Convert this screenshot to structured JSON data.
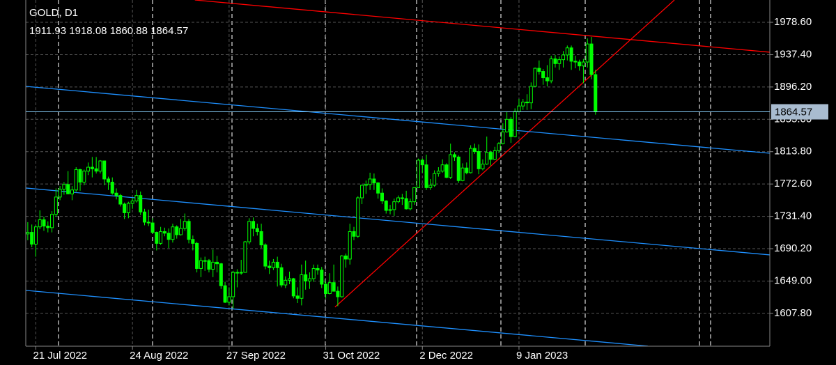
{
  "chart_data": {
    "type": "candlestick",
    "title": "GOLD, D1",
    "categories": [
      null,
      null,
      "21 Jul 2022",
      null,
      null,
      null,
      null,
      null,
      null,
      null,
      null,
      null,
      null,
      null,
      null,
      null,
      null,
      null,
      null,
      null,
      null,
      null,
      null,
      null,
      null,
      null,
      "24 Aug 2022",
      null,
      null,
      null,
      null,
      null,
      null,
      null,
      null,
      null,
      null,
      null,
      null,
      null,
      null,
      null,
      null,
      null,
      null,
      null,
      null,
      null,
      null,
      null,
      "27 Sep 2022",
      null,
      null,
      null,
      null,
      null,
      null,
      null,
      null,
      null,
      null,
      null,
      null,
      null,
      null,
      null,
      null,
      null,
      null,
      null,
      null,
      null,
      null,
      null,
      "31 Oct 2022",
      null,
      null,
      null,
      null,
      null,
      null,
      null,
      null,
      null,
      null,
      null,
      null,
      null,
      null,
      null,
      null,
      null,
      null,
      null,
      null,
      null,
      null,
      null,
      "2 Dec 2022",
      null,
      null,
      null,
      null,
      null,
      null,
      null,
      null,
      null,
      null,
      null,
      null,
      null,
      null,
      null,
      null,
      null,
      null,
      null,
      null,
      null,
      null,
      null,
      "9 Jan 2023",
      null,
      null,
      null,
      null,
      null,
      null,
      null,
      null,
      null,
      null,
      null,
      null,
      null,
      null,
      null,
      null,
      null,
      null,
      null
    ],
    "open": [
      1709,
      1711,
      1696,
      1718,
      1727,
      1719,
      1717,
      1734,
      1756,
      1766,
      1772,
      1760,
      1765,
      1791,
      1775,
      1789,
      1794,
      1792,
      1789,
      1802,
      1779,
      1775,
      1761,
      1758,
      1747,
      1736,
      1748,
      1751,
      1758,
      1737,
      1724,
      1723,
      1711,
      1697,
      1712,
      1710,
      1702,
      1718,
      1708,
      1716,
      1725,
      1702,
      1697,
      1665,
      1675,
      1675,
      1664,
      1673,
      1671,
      1643,
      1622,
      1629,
      1660,
      1660,
      1660,
      1699,
      1725,
      1716,
      1712,
      1695,
      1668,
      1666,
      1673,
      1666,
      1644,
      1650,
      1652,
      1630,
      1627,
      1657,
      1649,
      1652,
      1665,
      1663,
      1645,
      1633,
      1647,
      1636,
      1629,
      1681,
      1677,
      1712,
      1706,
      1755,
      1771,
      1772,
      1779,
      1774,
      1761,
      1751,
      1739,
      1740,
      1750,
      1755,
      1754,
      1741,
      1750,
      1768,
      1803,
      1797,
      1768,
      1771,
      1786,
      1789,
      1797,
      1781,
      1810,
      1807,
      1777,
      1793,
      1787,
      1818,
      1814,
      1792,
      1798,
      1813,
      1804,
      1815,
      1824,
      1839,
      1855,
      1833,
      1865,
      1872,
      1877,
      1876,
      1897,
      1920,
      1916,
      1908,
      1904,
      1932,
      1926,
      1931,
      1937,
      1946,
      1929,
      1928,
      1923,
      1928,
      1951,
      1911.93
    ],
    "high": [
      1724,
      1721,
      1720,
      1739,
      1731,
      1725,
      1738,
      1767,
      1770,
      1775,
      1789,
      1770,
      1794,
      1792,
      1791,
      1800,
      1807,
      1807,
      1803,
      1802,
      1782,
      1781,
      1767,
      1760,
      1749,
      1750,
      1755,
      1765,
      1763,
      1741,
      1740,
      1729,
      1712,
      1718,
      1717,
      1716,
      1722,
      1720,
      1728,
      1735,
      1728,
      1707,
      1699,
      1679,
      1680,
      1677,
      1689,
      1681,
      1672,
      1648,
      1641,
      1662,
      1664,
      1676,
      1700,
      1729,
      1730,
      1722,
      1722,
      1697,
      1675,
      1677,
      1680,
      1671,
      1655,
      1661,
      1653,
      1641,
      1670,
      1675,
      1660,
      1670,
      1670,
      1667,
      1649,
      1659,
      1670,
      1642,
      1682,
      1684,
      1722,
      1718,
      1757,
      1772,
      1777,
      1787,
      1786,
      1775,
      1767,
      1752,
      1746,
      1754,
      1758,
      1760,
      1764,
      1754,
      1768,
      1805,
      1805,
      1810,
      1779,
      1790,
      1794,
      1804,
      1799,
      1824,
      1813,
      1809,
      1799,
      1800,
      1822,
      1824,
      1823,
      1804,
      1833,
      1815,
      1820,
      1826,
      1850,
      1865,
      1858,
      1869,
      1881,
      1881,
      1887,
      1902,
      1921,
      1930,
      1919,
      1924,
      1936,
      1937,
      1935,
      1942,
      1949,
      1949,
      1936,
      1931,
      1932,
      1958,
      1960,
      1918.08
    ],
    "low": [
      1701,
      1692,
      1680,
      1715,
      1713,
      1711,
      1711,
      1731,
      1752,
      1759,
      1760,
      1752,
      1763,
      1764,
      1771,
      1784,
      1781,
      1786,
      1786,
      1771,
      1765,
      1759,
      1753,
      1744,
      1728,
      1729,
      1741,
      1749,
      1733,
      1720,
      1719,
      1709,
      1688,
      1695,
      1706,
      1691,
      1698,
      1703,
      1707,
      1713,
      1697,
      1688,
      1660,
      1654,
      1662,
      1660,
      1654,
      1660,
      1639,
      1621,
      1618,
      1614,
      1641,
      1657,
      1660,
      1696,
      1706,
      1707,
      1691,
      1664,
      1658,
      1663,
      1642,
      1641,
      1640,
      1645,
      1627,
      1621,
      1618,
      1638,
      1639,
      1648,
      1657,
      1640,
      1627,
      1632,
      1636,
      1617,
      1628,
      1666,
      1670,
      1701,
      1704,
      1747,
      1760,
      1765,
      1765,
      1754,
      1747,
      1735,
      1734,
      1732,
      1748,
      1746,
      1740,
      1739,
      1746,
      1768,
      1787,
      1765,
      1765,
      1769,
      1782,
      1787,
      1780,
      1779,
      1802,
      1774,
      1776,
      1785,
      1786,
      1811,
      1785,
      1790,
      1797,
      1796,
      1803,
      1812,
      1823,
      1838,
      1825,
      1832,
      1864,
      1867,
      1867,
      1868,
      1896,
      1912,
      1899,
      1897,
      1901,
      1921,
      1918,
      1921,
      1930,
      1918,
      1920,
      1917,
      1901,
      1921,
      1906,
      1860.88
    ],
    "close": [
      1711,
      1696,
      1718,
      1727,
      1719,
      1717,
      1734,
      1756,
      1766,
      1772,
      1760,
      1765,
      1791,
      1775,
      1789,
      1794,
      1792,
      1789,
      1802,
      1779,
      1775,
      1761,
      1758,
      1747,
      1736,
      1748,
      1751,
      1758,
      1737,
      1724,
      1723,
      1711,
      1697,
      1712,
      1710,
      1702,
      1718,
      1708,
      1716,
      1725,
      1702,
      1697,
      1665,
      1675,
      1675,
      1664,
      1673,
      1671,
      1643,
      1622,
      1629,
      1660,
      1660,
      1660,
      1699,
      1725,
      1716,
      1712,
      1695,
      1668,
      1666,
      1673,
      1666,
      1644,
      1650,
      1652,
      1630,
      1627,
      1657,
      1649,
      1652,
      1665,
      1663,
      1645,
      1633,
      1647,
      1636,
      1629,
      1681,
      1677,
      1712,
      1706,
      1755,
      1771,
      1772,
      1779,
      1774,
      1761,
      1751,
      1739,
      1740,
      1750,
      1755,
      1754,
      1741,
      1750,
      1768,
      1803,
      1797,
      1768,
      1771,
      1786,
      1789,
      1797,
      1781,
      1810,
      1807,
      1777,
      1793,
      1787,
      1818,
      1814,
      1792,
      1798,
      1813,
      1804,
      1815,
      1824,
      1839,
      1855,
      1833,
      1865,
      1872,
      1877,
      1876,
      1897,
      1920,
      1916,
      1908,
      1904,
      1932,
      1926,
      1931,
      1937,
      1946,
      1929,
      1928,
      1923,
      1928,
      1951,
      1912,
      1864.57
    ],
    "color": "#00ff00",
    "xlim": [
      -0.5,
      184.3
    ],
    "ylim": [
      1566,
      2007
    ],
    "yticks": [
      {
        "value": 1607.8,
        "label": "1607.80"
      },
      {
        "value": 1649,
        "label": "1649.00"
      },
      {
        "value": 1690.2,
        "label": "1690.20"
      },
      {
        "value": 1731.4,
        "label": "1731.40"
      },
      {
        "value": 1772.6,
        "label": "1772.60"
      },
      {
        "value": 1813.8,
        "label": "1813.80"
      },
      {
        "value": 1855,
        "label": "1855.00"
      },
      {
        "value": 1896.2,
        "label": "1896.20"
      },
      {
        "value": 1937.4,
        "label": "1937.40"
      },
      {
        "value": 1978.6,
        "label": "1978.60"
      }
    ],
    "grid": true,
    "price_line_color": "#87cefa",
    "trendlines": [
      {
        "color": "#ff0000",
        "x": [
          41.5,
          184.3
        ],
        "y": [
          2007,
          1940.5
        ]
      },
      {
        "color": "#ff0000",
        "x": [
          76.3,
          160.6
        ],
        "y": [
          1615.8,
          2007
        ]
      },
      {
        "color": "#1e90ff",
        "x": [
          -0.5,
          184.3
        ],
        "y": [
          1897,
          1811.8
        ]
      },
      {
        "color": "#1e90ff",
        "x": [
          -0.5,
          184.3
        ],
        "y": [
          1767.5,
          1682.3
        ]
      },
      {
        "color": "#1e90ff",
        "x": [
          -0.5,
          154
        ],
        "y": [
          1637.1,
          1566.1
        ]
      }
    ]
  }
}
